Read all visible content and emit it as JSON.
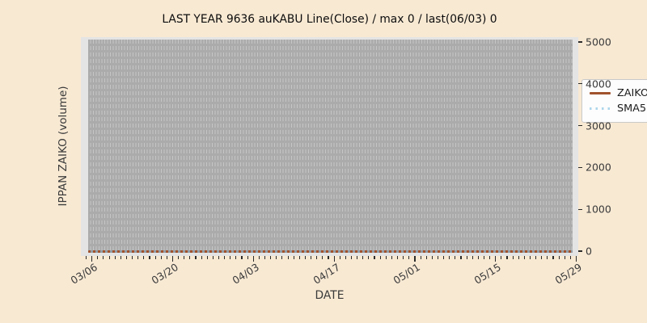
{
  "title": "LAST YEAR 9636 auKABU Line(Close) / max 0 / last(06/03) 0",
  "xlabel": "DATE",
  "ylabel": "IPPAN ZAIKO (volume)",
  "legend": {
    "items": [
      {
        "label": "ZAIKO",
        "style": "solid",
        "color": "#a0522d"
      },
      {
        "label": "SMA5",
        "style": "dotted",
        "color": "#aed6eb"
      }
    ]
  },
  "colors": {
    "figure_background": "#f8e9d3",
    "plot_background": "#e4e4e4",
    "plot_inner_background": "#ababab",
    "gridline": "#c6c6c6",
    "zaiko_line": "#a0522d",
    "sma5_line": "#aed6eb",
    "tick_text": "#3a3a3a",
    "title_text": "#0d0d0d",
    "legend_background": "#fdfdfd"
  },
  "chart_data": {
    "type": "line",
    "title": "LAST YEAR 9636 auKABU Line(Close) / max 0 / last(06/03) 0",
    "xlabel": "DATE",
    "ylabel": "IPPAN ZAIKO (volume)",
    "x_tick_labels": [
      "03/06",
      "03/20",
      "04/03",
      "04/17",
      "05/01",
      "05/15",
      "05/29"
    ],
    "x_range": [
      "03/04",
      "06/03"
    ],
    "y_ticks": [
      0,
      1000,
      2000,
      3000,
      4000,
      5000
    ],
    "ylim": [
      0,
      5000
    ],
    "yaxis_side": "right",
    "grid": "vertical dashed gridlines on gray panel",
    "legend_position": "upper right",
    "max_value": 0,
    "last_date": "06/03",
    "last_value": 0,
    "series": [
      {
        "name": "ZAIKO",
        "style": "solid",
        "color": "#a0522d",
        "constant_value": 0,
        "values": [
          0,
          0,
          0,
          0,
          0,
          0,
          0
        ]
      },
      {
        "name": "SMA5",
        "style": "dotted",
        "color": "#aed6eb",
        "constant_value": 0,
        "values": [
          0,
          0,
          0,
          0,
          0,
          0,
          0
        ]
      }
    ]
  }
}
